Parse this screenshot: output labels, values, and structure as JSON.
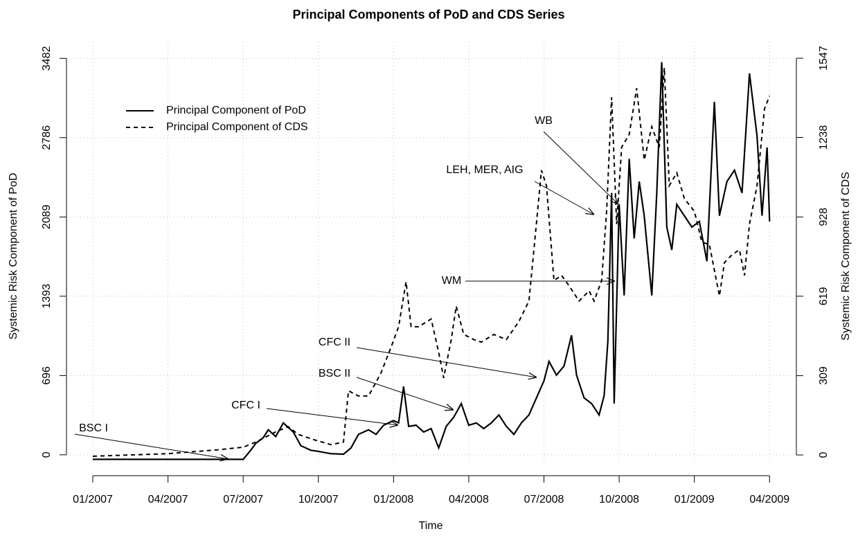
{
  "chart_data": {
    "type": "line",
    "title": "Principal Components of PoD and CDS Series",
    "x_label": "Time",
    "y_label": "Systemic Risk Component of PoD",
    "y2_label": "Systemic Risk Component of CDS",
    "xlim": [
      -1.05,
      28.07
    ],
    "xticks": [
      {
        "value": 0,
        "label": "01/2007"
      },
      {
        "value": 3,
        "label": "04/2007"
      },
      {
        "value": 6,
        "label": "07/2007"
      },
      {
        "value": 9,
        "label": "10/2007"
      },
      {
        "value": 12,
        "label": "01/2008"
      },
      {
        "value": 15,
        "label": "04/2008"
      },
      {
        "value": 18,
        "label": "07/2008"
      },
      {
        "value": 21,
        "label": "10/2008"
      },
      {
        "value": 24,
        "label": "01/2009"
      },
      {
        "value": 27,
        "label": "04/2009"
      }
    ],
    "ylim": [
      -80,
      3630
    ],
    "yticks": [
      0,
      696,
      1393,
      2089,
      2786,
      3482
    ],
    "y2lim": [
      -35,
      1612
    ],
    "y2ticks": [
      0,
      309,
      619,
      928,
      1238,
      1547
    ],
    "grid": true,
    "legend": "top-left",
    "annotations": [
      "BSC I",
      "CFC I",
      "BSC II",
      "CFC II",
      "WM",
      "LEH, MER, AIG",
      "WB"
    ],
    "series": [
      {
        "name": "Principal Component of PoD",
        "color": "#000000",
        "linestyle": "solid",
        "x": [
          0,
          2,
          4,
          6,
          6.3,
          6.5,
          6.8,
          7,
          7.3,
          7.6,
          8,
          8.3,
          8.7,
          9,
          9.5,
          10,
          10.3,
          10.6,
          11,
          11.3,
          11.6,
          12,
          12.2,
          12.4,
          12.6,
          12.9,
          13.2,
          13.5,
          13.8,
          14.1,
          14.4,
          14.7,
          15,
          15.3,
          15.6,
          15.9,
          16.2,
          16.5,
          16.8,
          17.1,
          17.4,
          17.7,
          18,
          18.2,
          18.5,
          18.8,
          19.1,
          19.3,
          19.6,
          19.9,
          20.2,
          20.4,
          20.55,
          20.7,
          20.8,
          21,
          21.2,
          21.4,
          21.6,
          21.8,
          22,
          22.3,
          22.5,
          22.7,
          22.9,
          23.1,
          23.3,
          23.6,
          23.9,
          24.2,
          24.5,
          24.8,
          25,
          25.3,
          25.6,
          25.9,
          26.2,
          26.5,
          26.7,
          26.9,
          27
        ],
        "values": [
          -40,
          -40,
          -40,
          -40,
          40,
          100,
          150,
          220,
          160,
          280,
          200,
          80,
          40,
          30,
          10,
          5,
          60,
          180,
          220,
          180,
          260,
          300,
          280,
          600,
          250,
          260,
          200,
          230,
          60,
          250,
          330,
          450,
          260,
          280,
          230,
          280,
          350,
          250,
          180,
          280,
          350,
          500,
          650,
          820,
          700,
          780,
          1050,
          700,
          500,
          450,
          350,
          520,
          1000,
          2300,
          450,
          2200,
          1400,
          2600,
          1900,
          2400,
          2100,
          1400,
          2300,
          3450,
          2000,
          1800,
          2200,
          2100,
          2000,
          2050,
          1700,
          3100,
          2100,
          2400,
          2500,
          2300,
          3350,
          2800,
          2100,
          2700,
          2050
        ]
      },
      {
        "name": "Principal Component of CDS",
        "color": "#000000",
        "linestyle": "dashed",
        "axis": "y2",
        "x": [
          0,
          3,
          5,
          6,
          6.5,
          7.3,
          7.8,
          8.2,
          8.8,
          9.5,
          10,
          10.2,
          10.6,
          11,
          11.5,
          11.9,
          12.2,
          12.5,
          12.7,
          13,
          13.5,
          13.8,
          14,
          14.3,
          14.5,
          14.8,
          15.2,
          15.5,
          16,
          16.5,
          17,
          17.4,
          17.6,
          17.9,
          18.1,
          18.4,
          18.7,
          19,
          19.4,
          19.8,
          20,
          20.3,
          20.5,
          20.7,
          20.9,
          21.1,
          21.4,
          21.7,
          22,
          22.3,
          22.6,
          22.8,
          23,
          23.3,
          23.6,
          24,
          24.3,
          24.6,
          25,
          25.2,
          25.5,
          25.8,
          26,
          26.2,
          26.5,
          26.8,
          27
        ],
        "values": [
          -5,
          5,
          20,
          30,
          50,
          90,
          110,
          80,
          60,
          40,
          50,
          250,
          230,
          230,
          320,
          420,
          500,
          675,
          500,
          500,
          530,
          400,
          300,
          450,
          580,
          470,
          450,
          440,
          470,
          450,
          520,
          600,
          800,
          1110,
          1050,
          680,
          700,
          660,
          600,
          640,
          600,
          680,
          950,
          1395,
          900,
          1200,
          1250,
          1430,
          1150,
          1280,
          1200,
          1510,
          1050,
          1100,
          1000,
          950,
          830,
          820,
          620,
          750,
          780,
          800,
          700,
          900,
          1050,
          1350,
          1400
        ]
      }
    ]
  }
}
